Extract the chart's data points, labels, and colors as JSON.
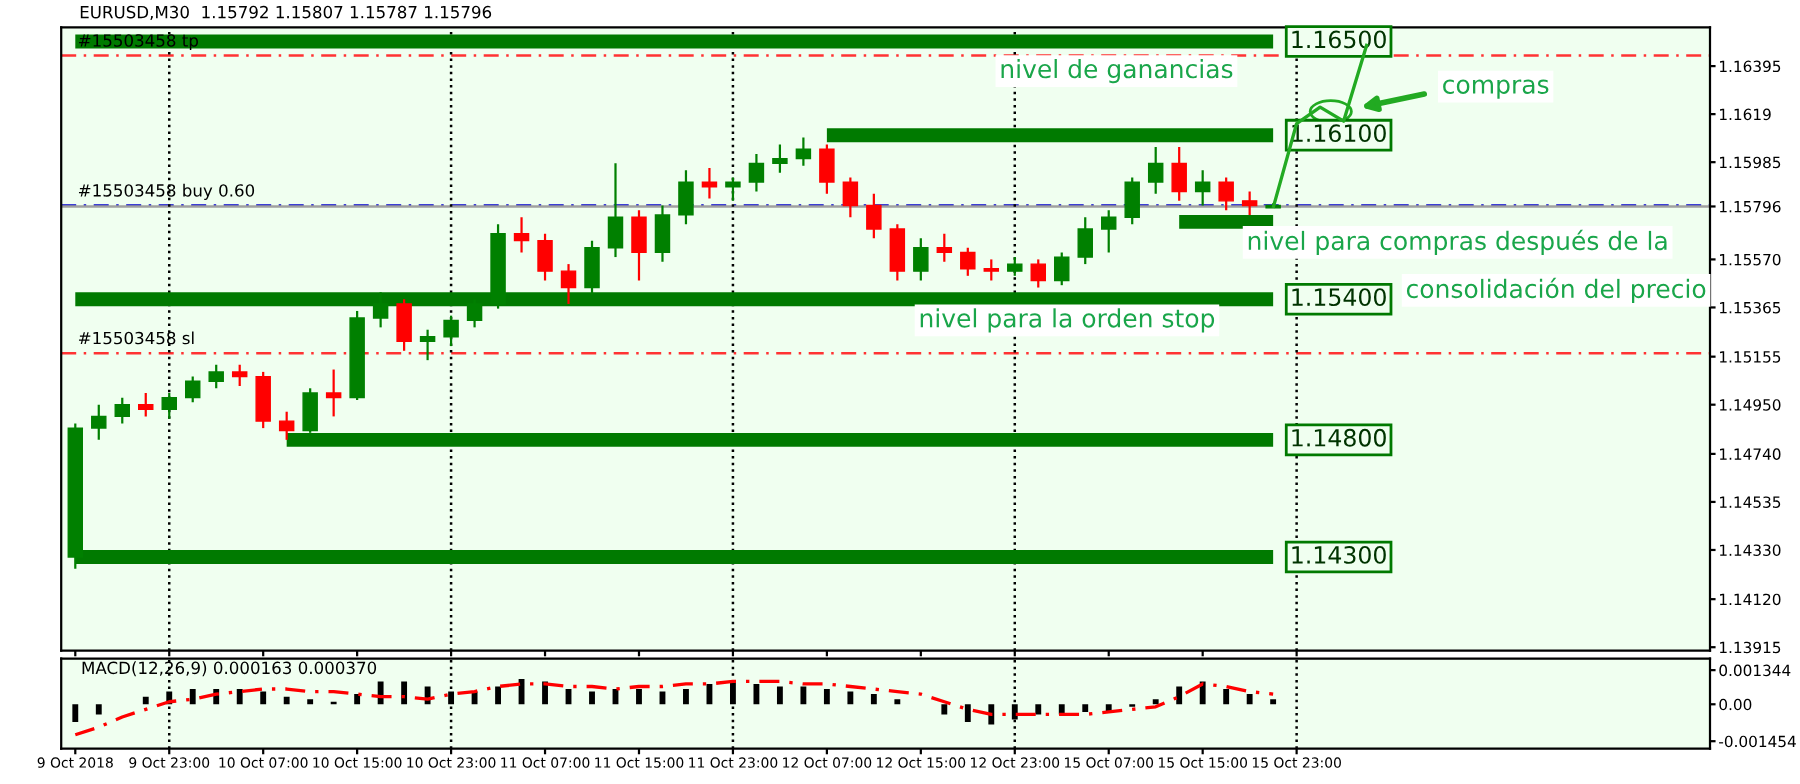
{
  "chart_data": [
    {
      "type": "candlestick",
      "title": "EURUSD,M30  1.15792 1.15807 1.15787 1.15796",
      "categories": [
        "9 Oct 2018",
        null,
        null,
        null,
        "9 Oct 23:00",
        null,
        null,
        null,
        "10 Oct 07:00",
        null,
        null,
        null,
        "10 Oct 15:00",
        null,
        null,
        null,
        "10 Oct 23:00",
        null,
        null,
        null,
        "11 Oct 07:00",
        null,
        null,
        null,
        "11 Oct 15:00",
        null,
        null,
        null,
        "11 Oct 23:00",
        null,
        null,
        null,
        "12 Oct 07:00",
        null,
        null,
        null,
        "12 Oct 15:00",
        null,
        null,
        null,
        "12 Oct 23:00",
        null,
        null,
        null,
        "15 Oct 07:00",
        null,
        null,
        null,
        "15 Oct 15:00",
        null,
        null,
        null,
        "15 Oct 23:00",
        null,
        null,
        null,
        null,
        null,
        null,
        null,
        null,
        null,
        null,
        null,
        null,
        null,
        null,
        null,
        null,
        null
      ],
      "ohlc": [
        [
          1.143,
          1.1487,
          1.1425,
          1.1485
        ],
        [
          1.1485,
          1.1495,
          1.148,
          1.149
        ],
        [
          1.149,
          1.1498,
          1.1487,
          1.1495
        ],
        [
          1.1495,
          1.15,
          1.149,
          1.1493
        ],
        [
          1.1493,
          1.15,
          1.1489,
          1.1498
        ],
        [
          1.1498,
          1.1507,
          1.1496,
          1.1505
        ],
        [
          1.1505,
          1.1512,
          1.1502,
          1.1509
        ],
        [
          1.1509,
          1.1512,
          1.1503,
          1.1507
        ],
        [
          1.1507,
          1.1509,
          1.1485,
          1.1488
        ],
        [
          1.1488,
          1.1492,
          1.148,
          1.1484
        ],
        [
          1.1484,
          1.1502,
          1.1483,
          1.15
        ],
        [
          1.15,
          1.151,
          1.149,
          1.1498
        ],
        [
          1.1498,
          1.1535,
          1.1497,
          1.1532
        ],
        [
          1.1532,
          1.1543,
          1.1528,
          1.1538
        ],
        [
          1.1538,
          1.154,
          1.1518,
          1.1522
        ],
        [
          1.1522,
          1.1527,
          1.1514,
          1.1524
        ],
        [
          1.1524,
          1.1533,
          1.152,
          1.1531
        ],
        [
          1.1531,
          1.154,
          1.1528,
          1.1538
        ],
        [
          1.1538,
          1.1572,
          1.1536,
          1.1568
        ],
        [
          1.1568,
          1.1575,
          1.156,
          1.1565
        ],
        [
          1.1565,
          1.1568,
          1.1548,
          1.1552
        ],
        [
          1.1552,
          1.1555,
          1.1538,
          1.1545
        ],
        [
          1.1545,
          1.1565,
          1.1542,
          1.1562
        ],
        [
          1.1562,
          1.1598,
          1.1558,
          1.1575
        ],
        [
          1.1575,
          1.1578,
          1.1548,
          1.156
        ],
        [
          1.156,
          1.158,
          1.1556,
          1.1576
        ],
        [
          1.1576,
          1.1595,
          1.1572,
          1.159
        ],
        [
          1.159,
          1.1596,
          1.1583,
          1.1588
        ],
        [
          1.1588,
          1.1592,
          1.1582,
          1.159
        ],
        [
          1.159,
          1.1602,
          1.1586,
          1.1598
        ],
        [
          1.1598,
          1.1606,
          1.1594,
          1.16
        ],
        [
          1.16,
          1.1609,
          1.1597,
          1.1604
        ],
        [
          1.1604,
          1.1606,
          1.1585,
          1.159
        ],
        [
          1.159,
          1.1592,
          1.1575,
          1.158
        ],
        [
          1.158,
          1.1585,
          1.1566,
          1.157
        ],
        [
          1.157,
          1.1572,
          1.1548,
          1.1552
        ],
        [
          1.1552,
          1.1566,
          1.1548,
          1.1562
        ],
        [
          1.1562,
          1.1568,
          1.1556,
          1.156
        ],
        [
          1.156,
          1.1562,
          1.155,
          1.1553
        ],
        [
          1.1553,
          1.1557,
          1.1548,
          1.1552
        ],
        [
          1.1552,
          1.1558,
          1.155,
          1.1555
        ],
        [
          1.1555,
          1.1557,
          1.1545,
          1.1548
        ],
        [
          1.1548,
          1.156,
          1.1546,
          1.1558
        ],
        [
          1.1558,
          1.1575,
          1.1555,
          1.157
        ],
        [
          1.157,
          1.1578,
          1.156,
          1.1575
        ],
        [
          1.1575,
          1.1592,
          1.1572,
          1.159
        ],
        [
          1.159,
          1.1605,
          1.1585,
          1.1598
        ],
        [
          1.1598,
          1.1605,
          1.1582,
          1.1586
        ],
        [
          1.1586,
          1.1595,
          1.158,
          1.159
        ],
        [
          1.159,
          1.1592,
          1.1578,
          1.1582
        ],
        [
          1.1582,
          1.1586,
          1.1576,
          1.158
        ],
        [
          1.1579,
          1.1581,
          1.1579,
          1.158
        ],
        null,
        null,
        null,
        null,
        null,
        null,
        null,
        null,
        null,
        null,
        null,
        null,
        null,
        null,
        null,
        null,
        null,
        null
      ],
      "series": [
        {
          "type": "line",
          "color": "#007a00",
          "values": [
            1.165,
            1.165,
            1.165,
            1.165,
            1.165,
            1.165,
            1.165,
            1.165,
            1.165,
            1.165,
            1.165,
            1.165,
            1.165,
            1.165,
            1.165,
            1.165,
            1.165,
            1.165,
            1.165,
            1.165,
            1.165,
            1.165,
            1.165,
            1.165,
            1.165,
            1.165,
            1.165,
            1.165,
            1.165,
            1.165,
            1.165,
            1.165,
            1.165,
            1.165,
            1.165,
            1.165,
            1.165,
            1.165,
            1.165,
            1.165,
            1.165,
            1.165,
            1.165,
            1.165,
            1.165,
            1.165,
            1.165,
            1.165,
            1.165,
            1.165,
            1.165,
            1.165,
            null,
            null,
            null,
            null,
            null,
            null,
            null,
            null,
            null,
            null,
            null,
            null,
            null,
            null,
            null,
            null,
            null,
            null
          ],
          "value_labels": [
            null,
            null,
            null,
            null,
            null,
            null,
            null,
            null,
            null,
            null,
            null,
            null,
            null,
            null,
            null,
            null,
            null,
            null,
            null,
            null,
            null,
            null,
            null,
            null,
            null,
            null,
            null,
            null,
            null,
            null,
            null,
            null,
            null,
            null,
            null,
            null,
            null,
            null,
            null,
            null,
            null,
            null,
            null,
            null,
            null,
            null,
            null,
            null,
            null,
            null,
            null,
            "1.16500",
            null,
            null,
            null,
            null,
            null,
            null,
            null,
            null,
            null,
            null,
            null,
            null,
            null,
            null,
            null,
            null,
            null,
            null
          ]
        },
        {
          "type": "line",
          "color": "#007a00",
          "values": [
            null,
            null,
            null,
            null,
            null,
            null,
            null,
            null,
            null,
            null,
            null,
            null,
            null,
            null,
            null,
            null,
            null,
            null,
            null,
            null,
            null,
            null,
            null,
            null,
            null,
            null,
            null,
            null,
            null,
            null,
            null,
            null,
            1.161,
            1.161,
            1.161,
            1.161,
            1.161,
            1.161,
            1.161,
            1.161,
            1.161,
            1.161,
            1.161,
            1.161,
            1.161,
            1.161,
            1.161,
            1.161,
            1.161,
            1.161,
            1.161,
            1.161,
            null,
            null,
            null,
            null,
            null,
            null,
            null,
            null,
            null,
            null,
            null,
            null,
            null,
            null,
            null,
            null,
            null,
            null
          ],
          "value_labels": [
            null,
            null,
            null,
            null,
            null,
            null,
            null,
            null,
            null,
            null,
            null,
            null,
            null,
            null,
            null,
            null,
            null,
            null,
            null,
            null,
            null,
            null,
            null,
            null,
            null,
            null,
            null,
            null,
            null,
            null,
            null,
            null,
            null,
            null,
            null,
            null,
            null,
            null,
            null,
            null,
            null,
            null,
            null,
            null,
            null,
            null,
            null,
            null,
            null,
            null,
            null,
            "1.16100",
            null,
            null,
            null,
            null,
            null,
            null,
            null,
            null,
            null,
            null,
            null,
            null,
            null,
            null,
            null,
            null,
            null,
            null
          ]
        },
        {
          "type": "line",
          "color": "#007a00",
          "values": [
            1.154,
            1.154,
            1.154,
            1.154,
            1.154,
            1.154,
            1.154,
            1.154,
            1.154,
            1.154,
            1.154,
            1.154,
            1.154,
            1.154,
            1.154,
            1.154,
            1.154,
            1.154,
            1.154,
            1.154,
            1.154,
            1.154,
            1.154,
            1.154,
            1.154,
            1.154,
            1.154,
            1.154,
            1.154,
            1.154,
            1.154,
            1.154,
            1.154,
            1.154,
            1.154,
            1.154,
            1.154,
            1.154,
            1.154,
            1.154,
            1.154,
            1.154,
            1.154,
            1.154,
            1.154,
            1.154,
            1.154,
            1.154,
            1.154,
            1.154,
            1.154,
            1.154,
            null,
            null,
            null,
            null,
            null,
            null,
            null,
            null,
            null,
            null,
            null,
            null,
            null,
            null,
            null,
            null,
            null,
            null
          ],
          "value_labels": [
            null,
            null,
            null,
            null,
            null,
            null,
            null,
            null,
            null,
            null,
            null,
            null,
            null,
            null,
            null,
            null,
            null,
            null,
            null,
            null,
            null,
            null,
            null,
            null,
            null,
            null,
            null,
            null,
            null,
            null,
            null,
            null,
            null,
            null,
            null,
            null,
            null,
            null,
            null,
            null,
            null,
            null,
            null,
            null,
            null,
            null,
            null,
            null,
            null,
            null,
            null,
            "1.15400",
            null,
            null,
            null,
            null,
            null,
            null,
            null,
            null,
            null,
            null,
            null,
            null,
            null,
            null,
            null,
            null,
            null,
            null
          ]
        },
        {
          "type": "line",
          "color": "#007a00",
          "values": [
            null,
            null,
            null,
            null,
            null,
            null,
            null,
            null,
            null,
            1.148,
            1.148,
            1.148,
            1.148,
            1.148,
            1.148,
            1.148,
            1.148,
            1.148,
            1.148,
            1.148,
            1.148,
            1.148,
            1.148,
            1.148,
            1.148,
            1.148,
            1.148,
            1.148,
            1.148,
            1.148,
            1.148,
            1.148,
            1.148,
            1.148,
            1.148,
            1.148,
            1.148,
            1.148,
            1.148,
            1.148,
            1.148,
            1.148,
            1.148,
            1.148,
            1.148,
            1.148,
            1.148,
            1.148,
            1.148,
            1.148,
            1.148,
            1.148,
            null,
            null,
            null,
            null,
            null,
            null,
            null,
            null,
            null,
            null,
            null,
            null,
            null,
            null,
            null,
            null,
            null,
            null
          ],
          "value_labels": [
            null,
            null,
            null,
            null,
            null,
            null,
            null,
            null,
            null,
            null,
            null,
            null,
            null,
            null,
            null,
            null,
            null,
            null,
            null,
            null,
            null,
            null,
            null,
            null,
            null,
            null,
            null,
            null,
            null,
            null,
            null,
            null,
            null,
            null,
            null,
            null,
            null,
            null,
            null,
            null,
            null,
            null,
            null,
            null,
            null,
            null,
            null,
            null,
            null,
            null,
            null,
            "1.14800",
            null,
            null,
            null,
            null,
            null,
            null,
            null,
            null,
            null,
            null,
            null,
            null,
            null,
            null,
            null,
            null,
            null,
            null
          ]
        },
        {
          "type": "line",
          "color": "#007a00",
          "values": [
            1.143,
            1.143,
            1.143,
            1.143,
            1.143,
            1.143,
            1.143,
            1.143,
            1.143,
            1.143,
            1.143,
            1.143,
            1.143,
            1.143,
            1.143,
            1.143,
            1.143,
            1.143,
            1.143,
            1.143,
            1.143,
            1.143,
            1.143,
            1.143,
            1.143,
            1.143,
            1.143,
            1.143,
            1.143,
            1.143,
            1.143,
            1.143,
            1.143,
            1.143,
            1.143,
            1.143,
            1.143,
            1.143,
            1.143,
            1.143,
            1.143,
            1.143,
            1.143,
            1.143,
            1.143,
            1.143,
            1.143,
            1.143,
            1.143,
            1.143,
            1.143,
            1.143,
            null,
            null,
            null,
            null,
            null,
            null,
            null,
            null,
            null,
            null,
            null,
            null,
            null,
            null,
            null,
            null,
            null,
            null
          ],
          "value_labels": [
            null,
            null,
            null,
            null,
            null,
            null,
            null,
            null,
            null,
            null,
            null,
            null,
            null,
            null,
            null,
            null,
            null,
            null,
            null,
            null,
            null,
            null,
            null,
            null,
            null,
            null,
            null,
            null,
            null,
            null,
            null,
            null,
            null,
            null,
            null,
            null,
            null,
            null,
            null,
            null,
            null,
            null,
            null,
            null,
            null,
            null,
            null,
            null,
            null,
            null,
            null,
            "1.14300",
            null,
            null,
            null,
            null,
            null,
            null,
            null,
            null,
            null,
            null,
            null,
            null,
            null,
            null,
            null,
            null,
            null,
            null
          ]
        },
        {
          "type": "line",
          "color": "#007a00",
          "values": [
            null,
            null,
            null,
            null,
            null,
            null,
            null,
            null,
            null,
            null,
            null,
            null,
            null,
            null,
            null,
            null,
            null,
            null,
            null,
            null,
            null,
            null,
            null,
            null,
            null,
            null,
            null,
            null,
            null,
            null,
            null,
            null,
            null,
            null,
            null,
            null,
            null,
            null,
            null,
            null,
            null,
            null,
            null,
            null,
            null,
            null,
            null,
            1.1573,
            1.1573,
            1.1573,
            1.1573,
            1.1573,
            null,
            null,
            null,
            null,
            null,
            null,
            null,
            null,
            null,
            null,
            null,
            null,
            null,
            null,
            null,
            null,
            null,
            null
          ]
        },
        {
          "type": "line",
          "color": "#22aa22",
          "values": [
            null,
            null,
            null,
            null,
            null,
            null,
            null,
            null,
            null,
            null,
            null,
            null,
            null,
            null,
            null,
            null,
            null,
            null,
            null,
            null,
            null,
            null,
            null,
            null,
            null,
            null,
            null,
            null,
            null,
            null,
            null,
            null,
            null,
            null,
            null,
            null,
            null,
            null,
            null,
            null,
            null,
            null,
            null,
            null,
            null,
            null,
            null,
            null,
            null,
            null,
            null,
            1.1579,
            1.1615,
            1.1622,
            1.1616,
            1.1649,
            null,
            null,
            null,
            null,
            null,
            null,
            null,
            null,
            null,
            null,
            null,
            null,
            null,
            null
          ]
        }
      ],
      "ref_lines": [
        {
          "axis": "y",
          "value": 1.1644,
          "label": "#15503458 tp",
          "color": "#ff3333",
          "line_style": "dashed"
        },
        {
          "axis": "y",
          "value": 1.158,
          "label": "#15503458 buy 0.60",
          "color": "#0000cc",
          "line_style": "dashed"
        },
        {
          "axis": "y",
          "value": 1.1517,
          "label": "#15503458 sl",
          "color": "#ff3333",
          "line_style": "dashed"
        },
        {
          "axis": "y",
          "value": 1.15796,
          "color": "#a0a0a0",
          "line_style": "solid"
        },
        {
          "axis": "x",
          "value": "9 Oct 23:00",
          "color": "#000000",
          "line_style": "dotted"
        },
        {
          "axis": "x",
          "value": "10 Oct 23:00",
          "color": "#000000",
          "line_style": "dotted"
        },
        {
          "axis": "x",
          "value": "11 Oct 23:00",
          "color": "#000000",
          "line_style": "dotted"
        },
        {
          "axis": "x",
          "value": "12 Oct 23:00",
          "color": "#000000",
          "line_style": "dotted"
        },
        {
          "axis": "x",
          "value": "15 Oct 23:00",
          "color": "#000000",
          "line_style": "dotted"
        }
      ],
      "annotations": [
        "nivel de ganancias",
        "nivel para compras después de la",
        "consolidación del precio",
        "nivel para la orden stop",
        "compras"
      ],
      "ylim": [
        1.139,
        1.1656
      ],
      "yticks": [
        1.16395,
        1.1619,
        1.15985,
        {
          "value": 1.15796,
          "label": "1.15796"
        },
        {
          "value": 1.1557,
          "label": "1.15570"
        },
        1.15365,
        1.15155,
        {
          "value": 1.1495,
          "label": "1.14950"
        },
        {
          "value": 1.1474,
          "label": "1.14740"
        },
        1.14535,
        {
          "value": 1.1433,
          "label": "1.14330"
        },
        {
          "value": 1.1412,
          "label": "1.14120"
        },
        1.13915
      ],
      "tick_labels": "y"
    },
    {
      "type": "bar",
      "title": "MACD(12,26,9) 0.000163 0.000370",
      "categories": [
        "9 Oct 2018",
        null,
        null,
        null,
        "9 Oct 23:00",
        null,
        null,
        null,
        "10 Oct 07:00",
        null,
        null,
        null,
        "10 Oct 15:00",
        null,
        null,
        null,
        "10 Oct 23:00",
        null,
        null,
        null,
        "11 Oct 07:00",
        null,
        null,
        null,
        "11 Oct 15:00",
        null,
        null,
        null,
        "11 Oct 23:00",
        null,
        null,
        null,
        "12 Oct 07:00",
        null,
        null,
        null,
        "12 Oct 15:00",
        null,
        null,
        null,
        "12 Oct 23:00",
        null,
        null,
        null,
        "15 Oct 07:00",
        null,
        null,
        null,
        "15 Oct 15:00",
        null,
        null,
        null,
        "15 Oct 23:00",
        null,
        null,
        null,
        null,
        null,
        null,
        null,
        null,
        null,
        null,
        null,
        null,
        null,
        null,
        null,
        null,
        null
      ],
      "color": "#000000",
      "values": [
        -0.0007,
        -0.0004,
        0.0,
        0.0003,
        0.0005,
        0.0006,
        0.0006,
        0.0006,
        0.0005,
        0.0003,
        0.0002,
        0.0001,
        0.0004,
        0.0009,
        0.0009,
        0.0007,
        0.0005,
        0.0005,
        0.0007,
        0.001,
        0.0009,
        0.0006,
        0.0005,
        0.0006,
        0.0006,
        0.0005,
        0.0006,
        0.0008,
        0.0009,
        0.0008,
        0.0007,
        0.0007,
        0.0006,
        0.0005,
        0.0004,
        0.0002,
        0.0,
        -0.0004,
        -0.0007,
        -0.0008,
        -0.0006,
        -0.0004,
        -0.0004,
        -0.0003,
        -0.0003,
        -0.0001,
        0.0002,
        0.0007,
        0.0009,
        0.0006,
        0.0004,
        0.0002,
        null,
        null,
        null,
        null,
        null,
        null,
        null,
        null,
        null,
        null,
        null,
        null,
        null,
        null,
        null,
        null,
        null,
        null
      ],
      "series": [
        {
          "type": "line",
          "color": "#ff0000",
          "line_style": "dashed",
          "values": [
            -0.0012,
            -0.0009,
            -0.0005,
            -0.0002,
            0.0001,
            0.0002,
            0.0004,
            0.0005,
            0.0006,
            0.0006,
            0.0005,
            0.0005,
            0.0004,
            0.0003,
            0.0003,
            0.0002,
            0.0004,
            0.0005,
            0.0007,
            0.0008,
            0.0008,
            0.0007,
            0.0007,
            0.0006,
            0.0007,
            0.0007,
            0.0008,
            0.0008,
            0.0009,
            0.0009,
            0.0009,
            0.0008,
            0.0008,
            0.0007,
            0.0006,
            0.0005,
            0.0004,
            0.0001,
            -0.0002,
            -0.0004,
            -0.0004,
            -0.0004,
            -0.0004,
            -0.0004,
            -0.0003,
            -0.0002,
            -0.0001,
            0.0003,
            0.0008,
            0.0007,
            0.0005,
            0.0004,
            null,
            null,
            null,
            null,
            null,
            null,
            null,
            null,
            null,
            null,
            null,
            null,
            null,
            null,
            null,
            null,
            null,
            null
          ]
        }
      ],
      "ref_lines": [
        {
          "axis": "x",
          "value": "9 Oct 23:00",
          "color": "#000000",
          "line_style": "dotted"
        },
        {
          "axis": "x",
          "value": "10 Oct 23:00",
          "color": "#000000",
          "line_style": "dotted"
        },
        {
          "axis": "x",
          "value": "11 Oct 23:00",
          "color": "#000000",
          "line_style": "dotted"
        },
        {
          "axis": "x",
          "value": "12 Oct 23:00",
          "color": "#000000",
          "line_style": "dotted"
        },
        {
          "axis": "x",
          "value": "15 Oct 23:00",
          "color": "#000000",
          "line_style": "dotted"
        }
      ],
      "ylim": [
        -0.00175,
        0.0018
      ],
      "yticks": [
        0.001344,
        {
          "value": 0,
          "label": "0.00"
        },
        {
          "value": -0.001454,
          "label": "-0.001454"
        }
      ]
    }
  ]
}
